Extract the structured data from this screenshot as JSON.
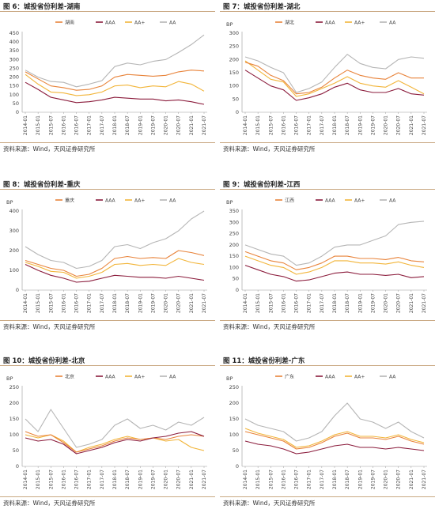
{
  "source_label": "资料来源：Wind，天风证券研究所",
  "colors": {
    "province": "#E8833A",
    "AAA": "#8B1C3C",
    "AA+": "#F2B53A",
    "AA": "#B5B5B5"
  },
  "chart_data": [
    {
      "type": "line",
      "title": "图 6：城投省份利差-湖南",
      "ylabel": "",
      "ylim": [
        0,
        450
      ],
      "yticks": [
        0,
        50,
        100,
        150,
        200,
        250,
        300,
        350,
        400,
        450
      ],
      "x": [
        "2014-01",
        "2015-01",
        "2015-07",
        "2016-01",
        "2016-07",
        "2017-01",
        "2017-07",
        "2018-01",
        "2018-07",
        "2019-01",
        "2019-07",
        "2020-01",
        "2020-07",
        "2021-01",
        "2021-07"
      ],
      "xlabels": [
        "2014-01",
        "2015-01",
        "2015-07",
        "2016-01",
        "2016-07",
        "2017-01",
        "2017-07",
        "2018-01",
        "2018-07",
        "2019-01",
        "2019-07",
        "2020-01",
        "2020-07",
        "2021-01",
        "2021-07"
      ],
      "series": [
        {
          "name": "湖南",
          "values": [
            230,
            190,
            150,
            140,
            125,
            130,
            150,
            200,
            215,
            210,
            205,
            210,
            230,
            240,
            235
          ]
        },
        {
          "name": "AAA",
          "values": [
            170,
            130,
            85,
            70,
            55,
            60,
            70,
            85,
            80,
            75,
            75,
            65,
            70,
            60,
            45
          ]
        },
        {
          "name": "AA+",
          "values": [
            215,
            160,
            115,
            110,
            95,
            100,
            115,
            150,
            155,
            140,
            150,
            145,
            175,
            160,
            120
          ]
        },
        {
          "name": "AA",
          "values": [
            240,
            200,
            175,
            170,
            145,
            160,
            180,
            260,
            280,
            270,
            290,
            300,
            340,
            385,
            440
          ]
        }
      ]
    },
    {
      "type": "line",
      "title": "图 7：城投省份利差-湖北",
      "ylabel": "BP",
      "ylim": [
        0,
        300
      ],
      "yticks": [
        0,
        50,
        100,
        150,
        200,
        250,
        300
      ],
      "x": [
        "2014-01",
        "2015-01",
        "2015-07",
        "2016-01",
        "2016-07",
        "2017-01",
        "2017-07",
        "2018-01",
        "2018-07",
        "2019-01",
        "2019-07",
        "2020-01",
        "2020-07",
        "2021-01",
        "2021-07"
      ],
      "xlabels": [
        "2014-01",
        "2015-01",
        "2015-07",
        "2016-01",
        "2016-07",
        "2017-01",
        "2017-07",
        "2018-01",
        "2018-07",
        "2019-01",
        "2019-07",
        "2020-01",
        "2020-07",
        "2021-01",
        "2021-07"
      ],
      "series": [
        {
          "name": "湖北",
          "values": [
            190,
            175,
            140,
            120,
            70,
            75,
            95,
            130,
            160,
            140,
            130,
            125,
            150,
            130,
            130
          ]
        },
        {
          "name": "AAA",
          "values": [
            160,
            130,
            100,
            85,
            45,
            55,
            70,
            95,
            110,
            85,
            75,
            75,
            90,
            70,
            65
          ]
        },
        {
          "name": "AA+",
          "values": [
            195,
            160,
            125,
            115,
            60,
            70,
            90,
            110,
            135,
            110,
            100,
            95,
            120,
            95,
            70
          ]
        },
        {
          "name": "AA",
          "values": [
            210,
            195,
            170,
            150,
            75,
            90,
            115,
            170,
            220,
            185,
            170,
            165,
            200,
            210,
            205
          ]
        }
      ]
    },
    {
      "type": "line",
      "title": "图 8：城投省份利差-重庆",
      "ylabel": "BP",
      "ylim": [
        0,
        400
      ],
      "yticks": [
        0,
        100,
        200,
        300,
        400
      ],
      "x": [
        "2014-01",
        "2015-01",
        "2015-07",
        "2016-01",
        "2016-07",
        "2017-01",
        "2017-07",
        "2018-01",
        "2018-07",
        "2019-01",
        "2019-07",
        "2020-01",
        "2020-07",
        "2021-01",
        "2021-07"
      ],
      "xlabels": [
        "2014-01",
        "2015-01",
        "2015-07",
        "2016-01",
        "2016-07",
        "2017-01",
        "2017-07",
        "2018-01",
        "2018-07",
        "2019-01",
        "2019-07",
        "2020-01",
        "2020-07",
        "2021-01",
        "2021-07"
      ],
      "series": [
        {
          "name": "重庆",
          "values": [
            150,
            130,
            110,
            100,
            70,
            80,
            110,
            160,
            170,
            160,
            165,
            160,
            200,
            190,
            175
          ]
        },
        {
          "name": "AAA",
          "values": [
            130,
            100,
            75,
            60,
            40,
            45,
            60,
            75,
            70,
            65,
            65,
            60,
            70,
            60,
            50
          ]
        },
        {
          "name": "AA+",
          "values": [
            140,
            120,
            95,
            90,
            60,
            70,
            90,
            130,
            135,
            125,
            130,
            125,
            160,
            140,
            130
          ]
        },
        {
          "name": "AA",
          "values": [
            220,
            180,
            150,
            140,
            110,
            120,
            150,
            220,
            230,
            210,
            240,
            260,
            300,
            360,
            400
          ]
        }
      ]
    },
    {
      "type": "line",
      "title": "图 9：城投省份利差-江西",
      "ylabel": "BP",
      "ylim": [
        0,
        350
      ],
      "yticks": [
        0,
        50,
        100,
        150,
        200,
        250,
        300,
        350
      ],
      "x": [
        "2014-01",
        "2015-01",
        "2015-07",
        "2016-01",
        "2016-07",
        "2017-01",
        "2017-07",
        "2018-01",
        "2018-07",
        "2019-01",
        "2019-07",
        "2020-01",
        "2020-07",
        "2021-01",
        "2021-07"
      ],
      "xlabels": [
        "2014-01",
        "2015-01",
        "2015-07",
        "2016-01",
        "2016-07",
        "2017-01",
        "2017-07",
        "2018-01",
        "2018-07",
        "2019-01",
        "2019-07",
        "2020-01",
        "2020-07",
        "2021-01",
        "2021-07"
      ],
      "series": [
        {
          "name": "江西",
          "values": [
            170,
            150,
            130,
            120,
            90,
            100,
            120,
            150,
            150,
            140,
            140,
            135,
            145,
            130,
            125
          ]
        },
        {
          "name": "AAA",
          "values": [
            110,
            90,
            70,
            60,
            40,
            45,
            60,
            75,
            80,
            70,
            70,
            65,
            70,
            55,
            60
          ]
        },
        {
          "name": "AA+",
          "values": [
            150,
            130,
            110,
            100,
            70,
            80,
            100,
            130,
            130,
            120,
            120,
            115,
            125,
            110,
            100
          ]
        },
        {
          "name": "AA",
          "values": [
            200,
            180,
            160,
            150,
            110,
            120,
            150,
            190,
            200,
            200,
            220,
            240,
            290,
            300,
            305
          ]
        }
      ]
    },
    {
      "type": "line",
      "title": "图 10：城投省份利差-北京",
      "ylabel": "BP",
      "ylim": [
        0,
        250
      ],
      "yticks": [
        0,
        50,
        100,
        150,
        200,
        250
      ],
      "x": [
        "2014-01",
        "2015-01",
        "2015-07",
        "2016-01",
        "2016-07",
        "2017-01",
        "2017-07",
        "2018-01",
        "2018-07",
        "2019-01",
        "2019-07",
        "2020-01",
        "2020-07",
        "2021-01",
        "2021-07"
      ],
      "xlabels": [
        "2014-01",
        "2015-01",
        "2015-07",
        "2016-01",
        "2016-07",
        "2017-01",
        "2017-07",
        "2018-01",
        "2018-07",
        "2019-01",
        "2019-07",
        "2020-01",
        "2020-07",
        "2021-01",
        "2021-07"
      ],
      "series": [
        {
          "name": "北京",
          "values": [
            110,
            95,
            100,
            75,
            45,
            55,
            65,
            80,
            90,
            85,
            90,
            85,
            95,
            100,
            95
          ]
        },
        {
          "name": "AAA",
          "values": [
            90,
            80,
            85,
            70,
            40,
            50,
            60,
            75,
            85,
            80,
            90,
            95,
            105,
            110,
            95
          ]
        },
        {
          "name": "AA+",
          "values": [
            100,
            90,
            100,
            80,
            45,
            60,
            70,
            85,
            95,
            85,
            90,
            80,
            85,
            60,
            50
          ]
        },
        {
          "name": "AA",
          "values": [
            150,
            110,
            180,
            120,
            60,
            70,
            85,
            130,
            150,
            120,
            130,
            115,
            140,
            130,
            155
          ]
        }
      ]
    },
    {
      "type": "line",
      "title": "图 11：城投省份利差-广东",
      "ylabel": "BP",
      "ylim": [
        0,
        250
      ],
      "yticks": [
        0,
        50,
        100,
        150,
        200,
        250
      ],
      "x": [
        "2014-01",
        "2015-01",
        "2015-07",
        "2016-01",
        "2016-07",
        "2017-01",
        "2017-07",
        "2018-01",
        "2018-07",
        "2019-01",
        "2019-07",
        "2020-01",
        "2020-07",
        "2021-01",
        "2021-07"
      ],
      "xlabels": [
        "2014-01",
        "2015-01",
        "2015-07",
        "2016-01",
        "2016-07",
        "2017-01",
        "2017-07",
        "2018-01",
        "2018-07",
        "2019-01",
        "2019-07",
        "2020-01",
        "2020-07",
        "2021-01",
        "2021-07"
      ],
      "series": [
        {
          "name": "广东",
          "values": [
            110,
            100,
            90,
            80,
            55,
            60,
            75,
            95,
            105,
            90,
            90,
            85,
            95,
            80,
            70
          ]
        },
        {
          "name": "AAA",
          "values": [
            80,
            70,
            65,
            55,
            40,
            45,
            55,
            65,
            70,
            60,
            60,
            55,
            60,
            55,
            50
          ]
        },
        {
          "name": "AA+",
          "values": [
            120,
            105,
            95,
            85,
            60,
            65,
            80,
            100,
            110,
            95,
            95,
            90,
            100,
            85,
            75
          ]
        },
        {
          "name": "AA",
          "values": [
            150,
            130,
            120,
            110,
            80,
            90,
            110,
            160,
            200,
            150,
            140,
            120,
            140,
            110,
            90
          ]
        }
      ]
    }
  ]
}
